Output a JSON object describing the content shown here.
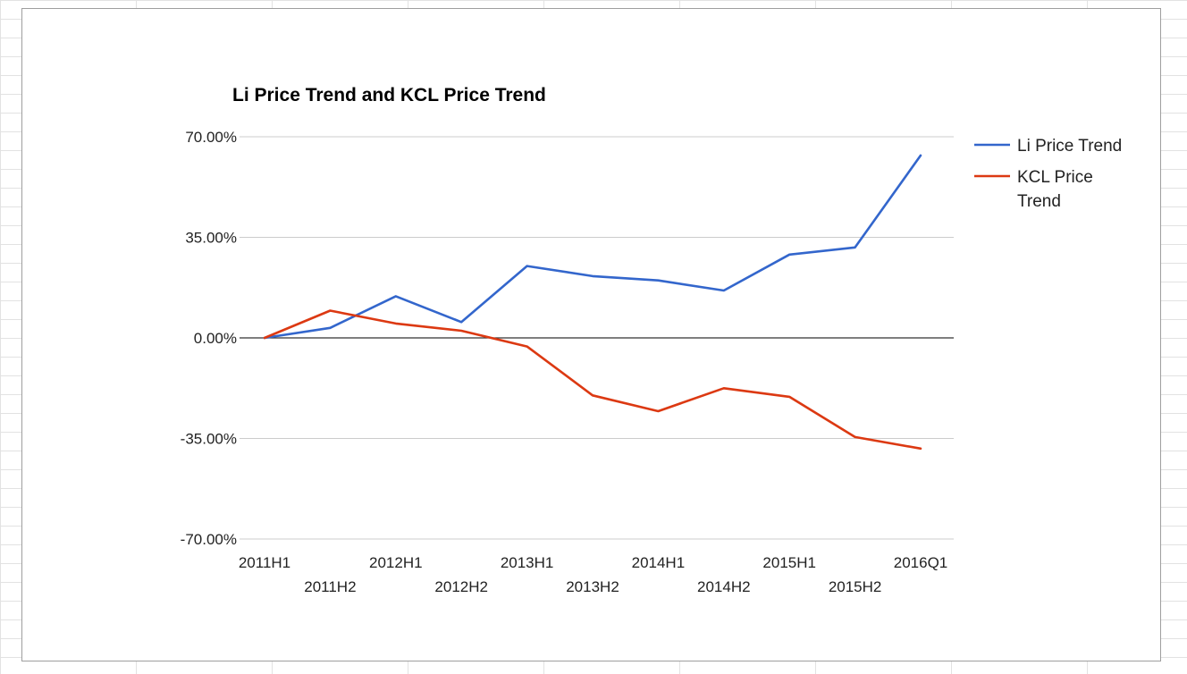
{
  "chart_data": {
    "type": "line",
    "title": "Li Price Trend and KCL Price Trend",
    "xlabel": "",
    "ylabel": "",
    "categories": [
      "2011H1",
      "2011H2",
      "2012H1",
      "2012H2",
      "2013H1",
      "2013H2",
      "2014H1",
      "2014H2",
      "2015H1",
      "2015H2",
      "2016Q1"
    ],
    "y_tick_labels": [
      "70.00%",
      "35.00%",
      "0.00%",
      "-35.00%",
      "-70.00%"
    ],
    "y_ticks": [
      70,
      35,
      0,
      -35,
      -70
    ],
    "ylim": [
      -70,
      70
    ],
    "y_unit": "percent",
    "grid": true,
    "legend_position": "right",
    "series": [
      {
        "name": "Li Price Trend",
        "color": "#3366cc",
        "values": [
          0,
          3.5,
          14.5,
          5.5,
          25,
          21.5,
          20,
          16.5,
          29,
          31.5,
          63.5
        ]
      },
      {
        "name": "KCL Price Trend",
        "color": "#dc3912",
        "values": [
          0,
          9.5,
          5,
          2.5,
          -3,
          -20,
          -25.5,
          -17.5,
          -20.5,
          -34.5,
          -38.5
        ]
      }
    ]
  }
}
